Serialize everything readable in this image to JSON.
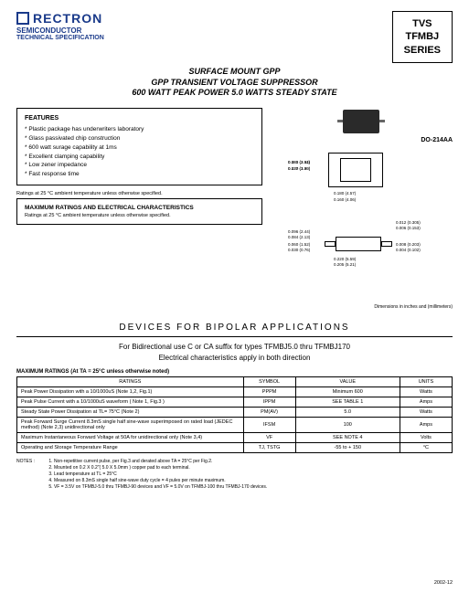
{
  "header": {
    "logo_text": "RECTRON",
    "logo_sub": "SEMICONDUCTOR",
    "logo_sub2": "TECHNICAL SPECIFICATION",
    "series_l1": "TVS",
    "series_l2": "TFMBJ",
    "series_l3": "SERIES"
  },
  "title": {
    "l1": "SURFACE MOUNT GPP",
    "l2": "GPP TRANSIENT VOLTAGE SUPPRESSOR",
    "l3": "600 WATT PEAK POWER  5.0 WATTS STEADY STATE"
  },
  "features": {
    "title": "FEATURES",
    "items": [
      "* Plastic package has underwriters laboratory",
      "* Glass passivated chip construction",
      "* 600 watt surage capability at 1ms",
      "* Excellent clamping capability",
      "* Low zener impedance",
      "* Fast response time"
    ]
  },
  "ratings_note": "Ratings at 25 °C ambient temperature unless otherwise specified.",
  "max_box": {
    "title": "MAXIMUM RATINGS AND ELECTRICAL CHARACTERISTICS",
    "sub": "Ratings at 25 °C ambient temperature unless otherwise specified."
  },
  "package": {
    "label": "DO-214AA",
    "dims_top": {
      "d1": "0.083 (2.11)",
      "d1b": "0.077 (1.95)",
      "d2": "0.155 (3.94)",
      "d2b": "0.130 (3.30)",
      "d3": "0.180 (4.57)",
      "d3b": "0.160 (4.06)"
    },
    "dims_bot": {
      "d1": "0.096 (2.44)",
      "d1b": "0.084 (2.13)",
      "d2": "0.060 (1.52)",
      "d2b": "0.030 (0.76)",
      "d3": "0.012 (0.305)",
      "d3b": "0.006 (0.153)",
      "d4": "0.008 (0.203)",
      "d4b": "0.004 (0.102)",
      "d5": "0.220 (5.59)",
      "d5b": "0.205 (5.21)"
    },
    "footer": "Dimensions in inches and (millimeters)"
  },
  "section": {
    "title": "DEVICES   FOR   BIPOLAR   APPLICATIONS",
    "sub1": "For Bidirectional use C or CA suffix for types TFMBJ5.0 thru TFMBJ170",
    "sub2": "Electrical characteristics apply in both direction"
  },
  "ratings_table": {
    "header_note": "MAXIMUM RATINGS (At TA = 25°C unless otherwise noted)",
    "cols": [
      "RATINGS",
      "SYMBOL",
      "VALUE",
      "UNITS"
    ],
    "rows": [
      [
        "Peak Power Dissipation with a 10/1000uS (Note 1,2, Fig.1)",
        "PPPM",
        "Minimum 600",
        "Watts"
      ],
      [
        "Peak Pulse Current with a 10/1000uS waveform ( Note 1, Fig.3 )",
        "IPPM",
        "SEE TABLE 1",
        "Amps"
      ],
      [
        "Steady State Power Dissipation at TL= 75°C (Note 2)",
        "PM(AV)",
        "5.0",
        "Watts"
      ],
      [
        "Peak Forward Surge Current 8.3mS single half sine-wave superimposed on rated load (JEDEC method) (Note 2,3) unidirectional only",
        "IFSM",
        "100",
        "Amps"
      ],
      [
        "Maximum Instantaneous Forward Voltage at 50A for unidirectional only (Note 3,4)",
        "VF",
        "SEE NOTE 4",
        "Volts"
      ],
      [
        "Operating and Storage Temperature Range",
        "TJ, TSTG",
        "-55 to + 150",
        "°C"
      ]
    ]
  },
  "notes": {
    "label": "NOTES :",
    "items": [
      "1. Non-repetitive current pulse, per Fig.3 and derated above TA = 25°C per Fig.2.",
      "2. Mounted on 0.2 X 0.2\"( 5.0 X 5.0mm ) copper pad to each terminal.",
      "3. Lead temperature at TL = 25°C",
      "4. Measured on 8.3mS single half sine-wave duty cycle = 4 pules per minute maximum.",
      "5. VF = 3.5V on TFMBJ-5.0 thru TFMBJ-90 devices and VF = 5.0V on TFMBJ-100 thru TFMBJ-170 devices."
    ]
  },
  "footer": {
    "code": "2002-12"
  }
}
